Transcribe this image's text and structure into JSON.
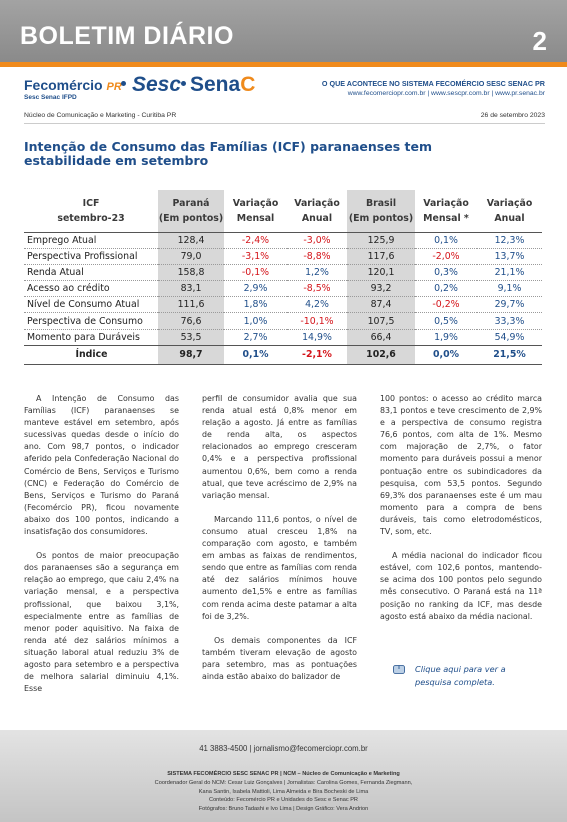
{
  "header": {
    "title": "BOLETIM DIÁRIO",
    "page_number": "2",
    "logos": {
      "fecomercio": "Fecomércio",
      "fecomercio_pr": "PR",
      "fecomercio_sub": "Sesc  Senac  IFPD",
      "sesc": "Sesc",
      "senac_left": "Sena",
      "senac_right": "C"
    },
    "tagline": "O QUE ACONTECE NO SISTEMA FECOMÉRCIO SESC SENAC PR",
    "urls": "www.fecomerciopr.com.br | www.sescpr.com.br | www.pr.senac.br",
    "subbar_left": "Núcleo de Comunicação e Marketing - Curitiba PR",
    "date": "26 de setembro 2023"
  },
  "article": {
    "title": "Intenção de Consumo das Famílias (ICF) paranaenses tem estabilidade em setembro",
    "table": {
      "headers": {
        "col0_line1": "ICF",
        "col0_line2": "setembro-23",
        "parana_line1": "Paraná",
        "parana_line2": "(Em pontos)",
        "var_mensal_line1": "Variação",
        "var_mensal_line2": "Mensal",
        "var_anual_line1": "Variação",
        "var_anual_line2": "Anual",
        "brasil_line1": "Brasil",
        "brasil_line2": "(Em pontos)",
        "br_var_mensal_line1": "Variação",
        "br_var_mensal_line2": "Mensal *",
        "br_var_anual_line1": "Variação",
        "br_var_anual_line2": "Anual"
      },
      "rows": [
        {
          "label": "Emprego Atual",
          "pr": "128,4",
          "pr_m": "-2,4%",
          "pr_a": "-3,0%",
          "br": "125,9",
          "br_m": "0,1%",
          "br_a": "12,3%"
        },
        {
          "label": "Perspectiva Profissional",
          "pr": "79,0",
          "pr_m": "-3,1%",
          "pr_a": "-8,8%",
          "br": "117,6",
          "br_m": "-2,0%",
          "br_a": "13,7%"
        },
        {
          "label": "Renda Atual",
          "pr": "158,8",
          "pr_m": "-0,1%",
          "pr_a": "1,2%",
          "br": "120,1",
          "br_m": "0,3%",
          "br_a": "21,1%"
        },
        {
          "label": "Acesso ao crédito",
          "pr": "83,1",
          "pr_m": "2,9%",
          "pr_a": "-8,5%",
          "br": "93,2",
          "br_m": "0,2%",
          "br_a": "9,1%"
        },
        {
          "label": "Nível de Consumo Atual",
          "pr": "111,6",
          "pr_m": "1,8%",
          "pr_a": "4,2%",
          "br": "87,4",
          "br_m": "-0,2%",
          "br_a": "29,7%"
        },
        {
          "label": "Perspectiva de Consumo",
          "pr": "76,6",
          "pr_m": "1,0%",
          "pr_a": "-10,1%",
          "br": "107,5",
          "br_m": "0,5%",
          "br_a": "33,3%"
        },
        {
          "label": "Momento para Duráveis",
          "pr": "53,5",
          "pr_m": "2,7%",
          "pr_a": "14,9%",
          "br": "66,4",
          "br_m": "1,9%",
          "br_a": "54,9%"
        }
      ],
      "index_row": {
        "label": "Índice",
        "pr": "98,7",
        "pr_m": "0,1%",
        "pr_a": "-2,1%",
        "br": "102,6",
        "br_m": "0,0%",
        "br_a": "21,5%"
      }
    },
    "body": {
      "p1": "A Intenção de Consumo das Famílias (ICF) paranaenses se manteve estável em setembro, após sucessivas quedas desde o início do ano. Com 98,7 pontos, o indicador aferido pela Confederação Nacional do Comércio de Bens, Serviços e Turismo (CNC) e Federação do Comércio de Bens, Serviços e Turismo do Paraná (Fecomércio PR), ficou novamente abaixo dos 100 pontos, indicando a insatisfação dos consumidores.",
      "p2": "Os pontos de maior preocupação dos paranaenses são a segurança em relação ao emprego, que caiu 2,4% na variação mensal, e a perspectiva profissional, que baixou 3,1%, especialmente entre as famílias de menor poder aquisitivo. Na faixa de renda até dez salários mínimos a situação laboral atual reduziu 3% de agosto para setembro e a perspectiva de melhora salarial diminuiu 4,1%. Esse",
      "p3": "perfil de consumidor avalia que sua renda atual está 0,8% menor em relação a agosto. Já entre as famílias de renda alta, os aspectos relacionados ao emprego cresceram 0,4% e a perspectiva profissional aumentou 0,6%, bem como a renda atual, que teve acréscimo de 2,9% na variação mensal.",
      "p4": "Marcando 111,6 pontos, o nível de consumo atual cresceu 1,8% na comparação com agosto, e também em ambas as faixas de rendimentos, sendo que entre as famílias com renda até dez salários mínimos houve aumento de1,5% e entre as famílias com renda acima deste patamar a alta foi de 3,2%.",
      "p5": "Os demais componentes da ICF também tiveram elevação de agosto para setembro, mas as pontuações ainda estão abaixo do balizador de",
      "p6": "100 pontos: o acesso ao crédito marca 83,1 pontos e teve crescimento de 2,9% e a perspectiva de consumo registra 76,6 pontos, com alta de 1%. Mesmo com majoração de 2,7%, o fator momento para duráveis possui a menor pontuação entre os subindicadores da pesquisa, com 53,5 pontos. Segundo 69,3% dos paranaenses este é um mau momento para a compra de bens duráveis, tais como eletrodomésticos, TV, som, etc.",
      "p7": "A média nacional do indicador ficou estável, com 102,6 pontos, mantendo-se acima dos 100 pontos pelo segundo mês consecutivo. O Paraná está na 11ª posição no ranking da ICF, mas desde agosto está abaixo da média nacional.",
      "cta_line1": "Clique aqui para ver a",
      "cta_line2": "pesquisa completa."
    }
  },
  "footer": {
    "contact": "41 3883-4500  |  jornalismo@fecomerciopr.com.br",
    "credit1": "SISTEMA FECOMÉRCIO SESC SENAC PR  |  NCM – Núcleo de Comunicação e Marketing",
    "credit2": "Coordenador Geral do NCM: Cesar Luiz Gonçalves  |  Jornalistas: Carolina Gomes, Fernanda Ziegmann,",
    "credit3": "Kana Santin, Isabela Mattioli, Lima Almeida e Bira Bocheski de Lima",
    "credit4": "Conteúdo: Fecomércio PR e Unidades do Sesc e Senac PR",
    "credit5": "Fotógrafos: Bruno Tadashi e Ivo Lima  |  Design Gráfico: Vera Andrion"
  },
  "colors": {
    "header_grey": "#8a8a8a",
    "accent_orange": "#ef8a1c",
    "brand_blue": "#1f4e8a",
    "negative_red": "#d4141a"
  }
}
